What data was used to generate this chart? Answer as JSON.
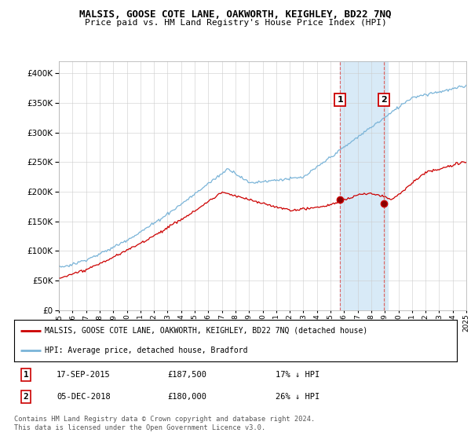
{
  "title": "MALSIS, GOOSE COTE LANE, OAKWORTH, KEIGHLEY, BD22 7NQ",
  "subtitle": "Price paid vs. HM Land Registry's House Price Index (HPI)",
  "legend_line1": "MALSIS, GOOSE COTE LANE, OAKWORTH, KEIGHLEY, BD22 7NQ (detached house)",
  "legend_line2": "HPI: Average price, detached house, Bradford",
  "transaction1_date": "17-SEP-2015",
  "transaction1_price": "£187,500",
  "transaction1_hpi": "17% ↓ HPI",
  "transaction2_date": "05-DEC-2018",
  "transaction2_price": "£180,000",
  "transaction2_hpi": "26% ↓ HPI",
  "footnote": "Contains HM Land Registry data © Crown copyright and database right 2024.\nThis data is licensed under the Open Government Licence v3.0.",
  "hpi_color": "#7ab4d8",
  "price_color": "#cc0000",
  "highlight_color": "#d8eaf7",
  "vline_color": "#dd6666",
  "ylim_min": 0,
  "ylim_max": 420000,
  "year_start": 1995,
  "year_end": 2025,
  "transaction1_year": 2015.72,
  "transaction2_year": 2018.92,
  "transaction1_price_val": 187500,
  "transaction2_price_val": 180000
}
